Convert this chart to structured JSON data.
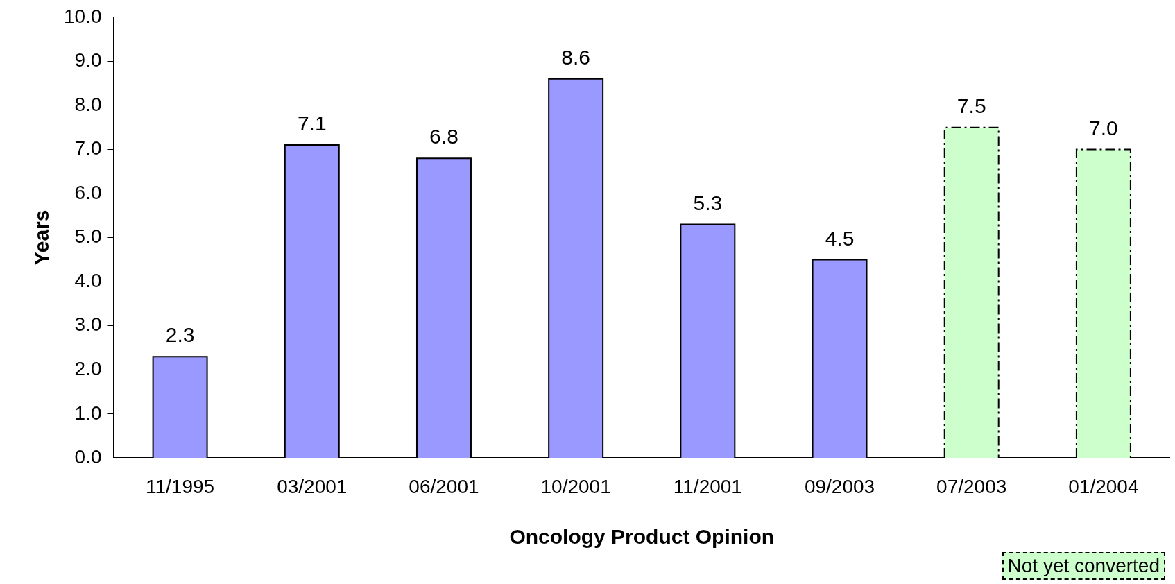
{
  "chart_data": {
    "type": "bar",
    "xlabel": "Oncology Product Opinion",
    "ylabel": "Years",
    "categories": [
      "11/1995",
      "03/2001",
      "06/2001",
      "10/2001",
      "11/2001",
      "09/2003",
      "07/2003",
      "01/2004"
    ],
    "series": [
      {
        "color": "#9999ff",
        "values": [
          2.3,
          7.1,
          6.8,
          8.6,
          5.3,
          4.5,
          null,
          null
        ],
        "value_labels": [
          "2.3",
          "7.1",
          "6.8",
          "8.6",
          "5.3",
          "4.5",
          null,
          null
        ],
        "line_style": "solid"
      },
      {
        "color": "#ccffcc",
        "values": [
          null,
          null,
          null,
          null,
          null,
          null,
          7.5,
          7.0
        ],
        "value_labels": [
          null,
          null,
          null,
          null,
          null,
          null,
          "7.5",
          "7.0"
        ],
        "line_style": "dashed"
      }
    ],
    "ylim": [
      0,
      10
    ],
    "yticks": [
      {
        "value": 0,
        "label": "0.0"
      },
      {
        "value": 1,
        "label": "1.0"
      },
      {
        "value": 2,
        "label": "2.0"
      },
      {
        "value": 3,
        "label": "3.0"
      },
      {
        "value": 4,
        "label": "4.0"
      },
      {
        "value": 5,
        "label": "5.0"
      },
      {
        "value": 6,
        "label": "6.0"
      },
      {
        "value": 7,
        "label": "7.0"
      },
      {
        "value": 8,
        "label": "8.0"
      },
      {
        "value": 9,
        "label": "9.0"
      },
      {
        "value": 10,
        "label": "10.0"
      }
    ],
    "grid": false,
    "legend": false,
    "annotations": [
      "Not yet converted"
    ]
  }
}
